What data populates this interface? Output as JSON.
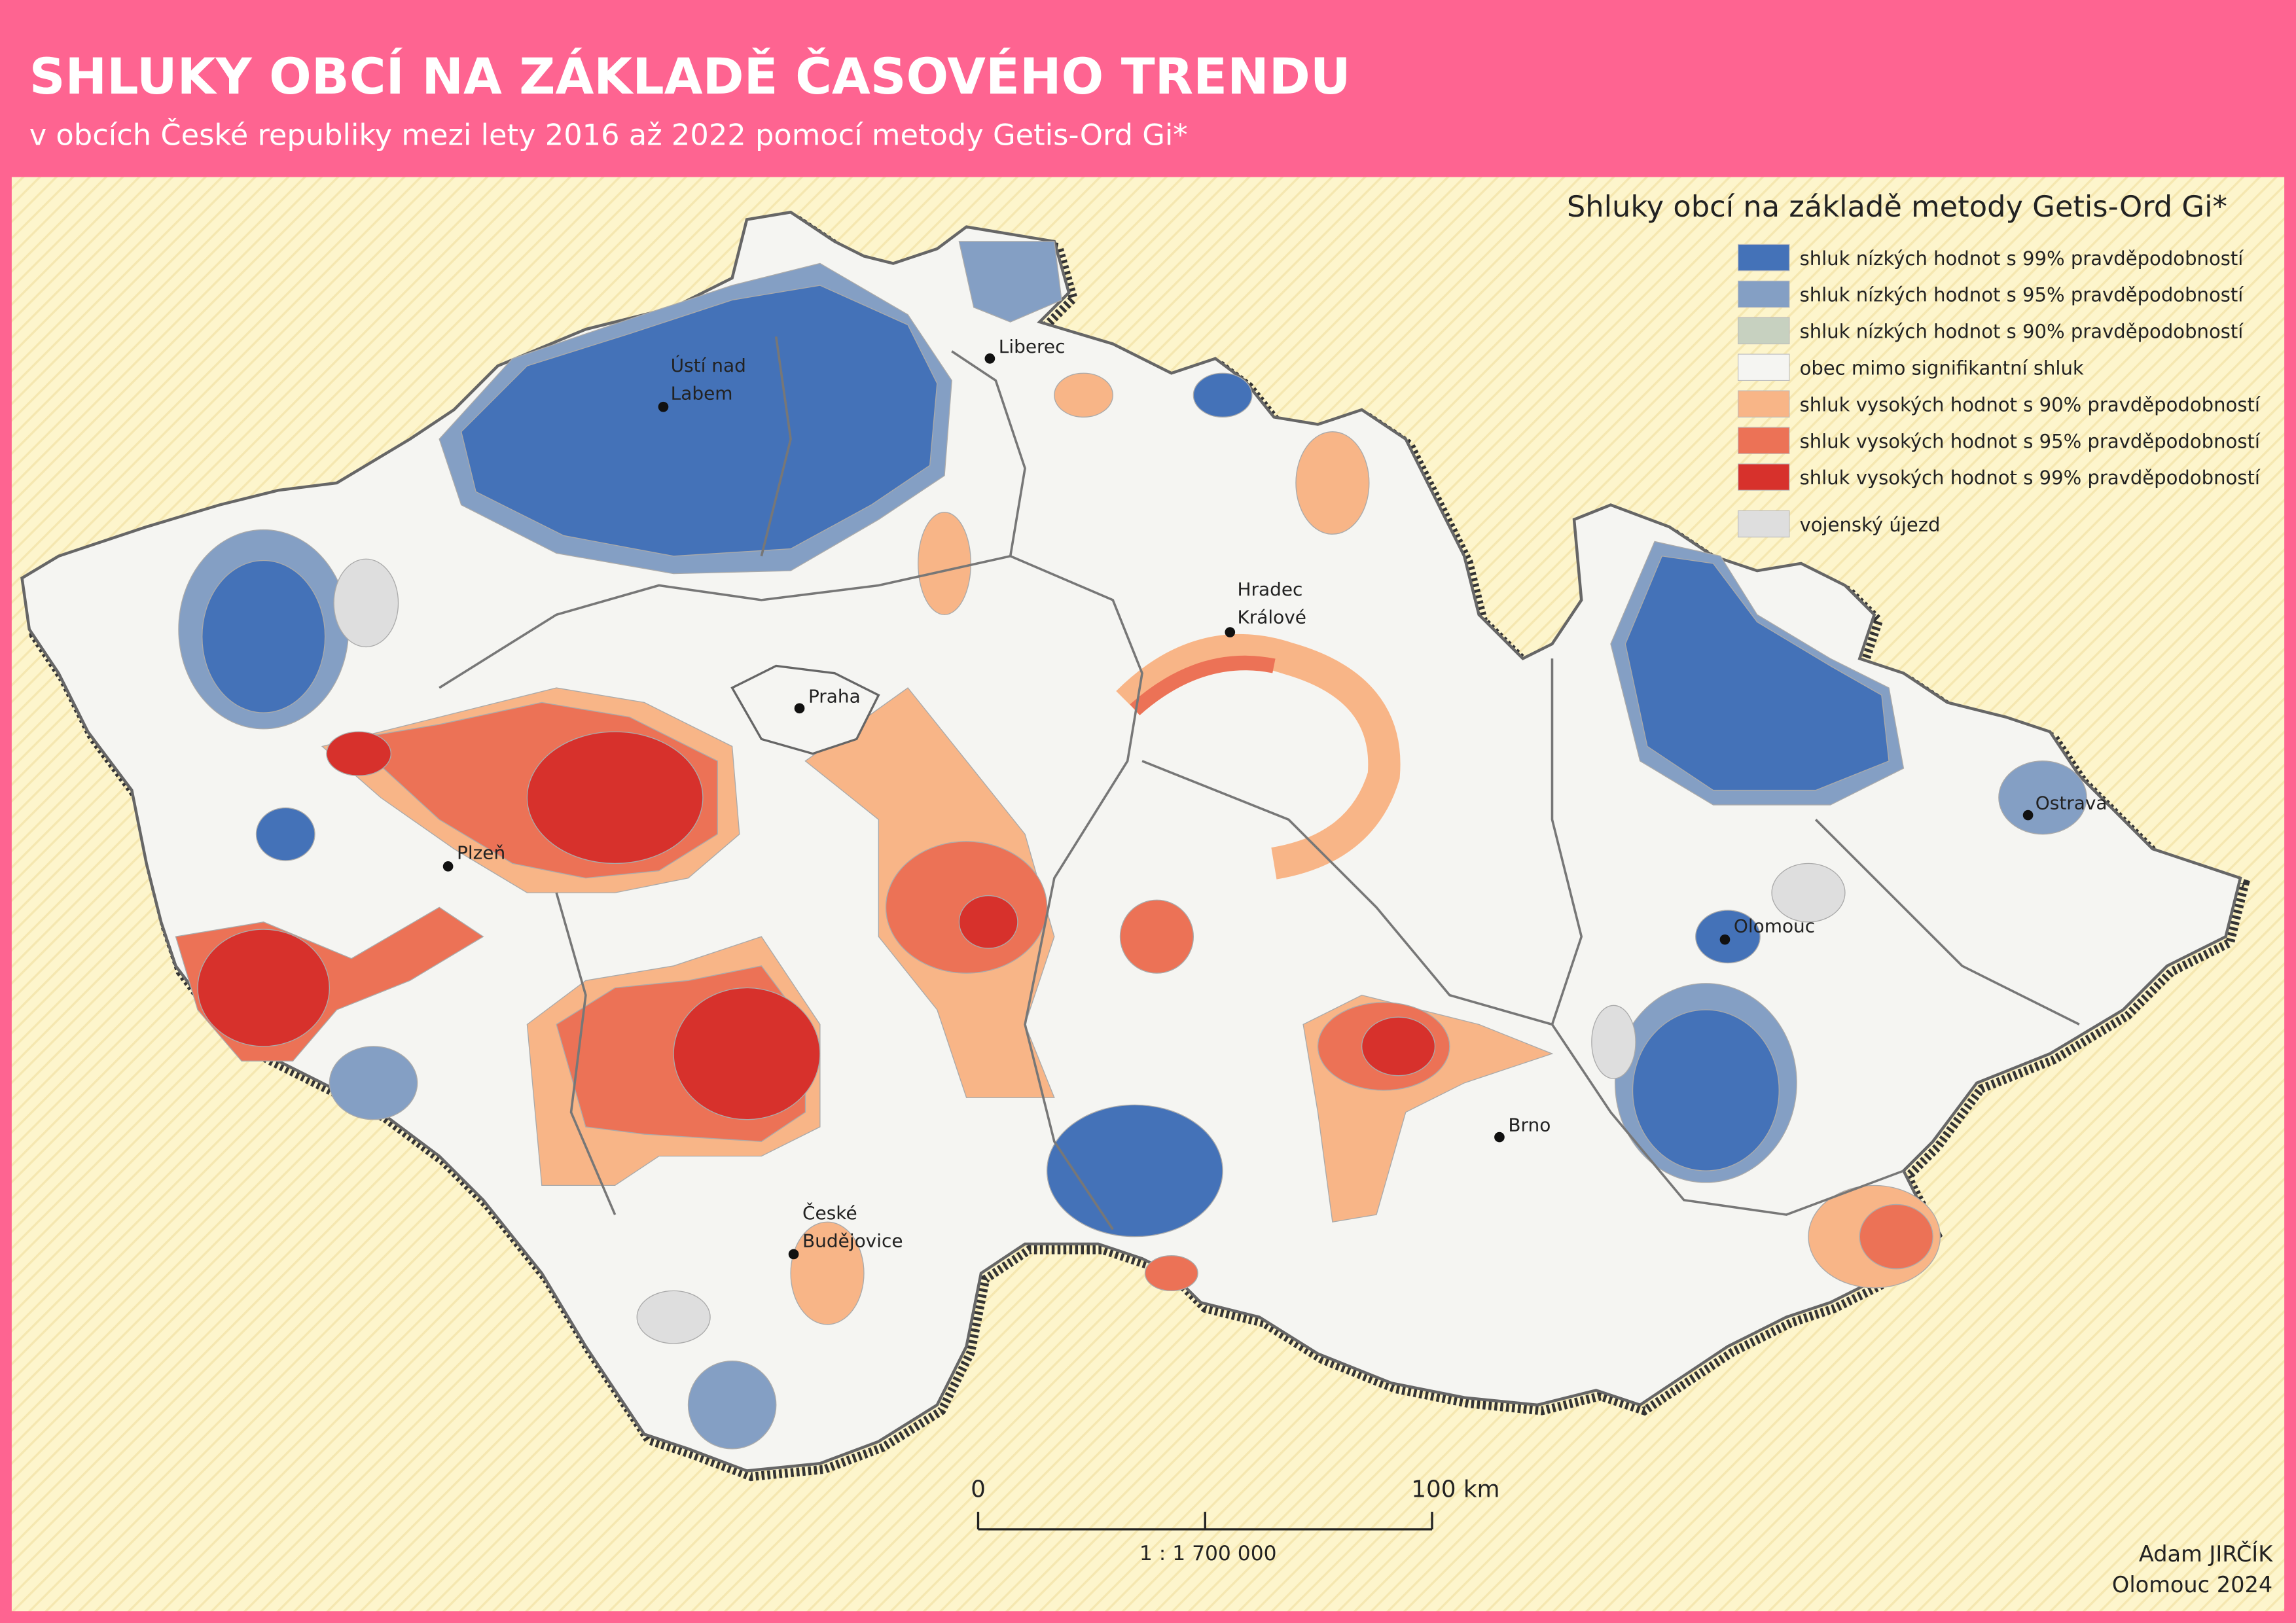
{
  "header": {
    "title": "SHLUKY OBCÍ NA ZÁKLADĚ ČASOVÉHO TRENDU",
    "subtitle": "v obcích České republiky mezi lety 2016 až 2022 pomocí metody Getis-Ord Gi*"
  },
  "legend": {
    "title": "Shluky obcí na základě metody Getis-Ord Gi*",
    "items": [
      {
        "label": "shluk nízkých hodnot s 99% pravděpodobností",
        "color": "#4472b8"
      },
      {
        "label": "shluk nízkých hodnot s 95% pravděpodobností",
        "color": "#849fc4"
      },
      {
        "label": "shluk nízkých hodnot s 90% pravděpodobností",
        "color": "#c7d1c0"
      },
      {
        "label": "obec mimo signifikantní shluk",
        "color": "#f5f5f2"
      },
      {
        "label": "shluk vysokých hodnot s 90% pravděpodobností",
        "color": "#f8b587"
      },
      {
        "label": "shluk vysokých hodnot s 95% pravděpodobností",
        "color": "#ec7256"
      },
      {
        "label": "shluk vysokých hodnot s 99% pravděpodobností",
        "color": "#d7312c"
      },
      {
        "label": "vojenský újezd",
        "color": "#dedede"
      }
    ]
  },
  "cities": [
    {
      "lines": [
        "Ústí nad",
        "Labem"
      ]
    },
    {
      "lines": [
        "Liberec"
      ]
    },
    {
      "lines": [
        "Hradec",
        "Králové"
      ]
    },
    {
      "lines": [
        "Praha"
      ]
    },
    {
      "lines": [
        "Plzeň"
      ]
    },
    {
      "lines": [
        "České",
        "Budějovice"
      ]
    },
    {
      "lines": [
        "Olomouc"
      ]
    },
    {
      "lines": [
        "Ostrava"
      ]
    },
    {
      "lines": [
        "Brno"
      ]
    }
  ],
  "scale_bar": {
    "start": "0",
    "end": "100 km",
    "ratio": "1 : 1 700 000"
  },
  "author": {
    "name": "Adam JIRČÍK",
    "place_year": "Olomouc 2024"
  }
}
